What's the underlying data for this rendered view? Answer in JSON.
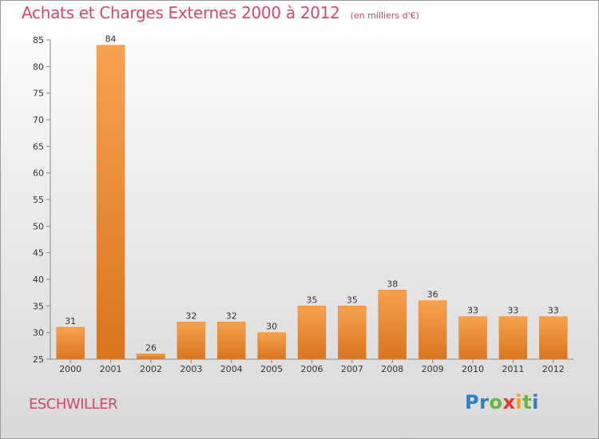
{
  "header": {
    "title": "Achats et Charges Externes 2000 à 2012",
    "subtitle": "(en milliers d'€)"
  },
  "footer": {
    "city": "ESCHWILLER",
    "logo_letters": [
      {
        "ch": "P",
        "color": "#2f7fc1"
      },
      {
        "ch": "r",
        "color": "#2f7fc1"
      },
      {
        "ch": "o",
        "color": "#6cb33e"
      },
      {
        "ch": "x",
        "color": "#e8352c"
      },
      {
        "ch": "i",
        "color": "#f0a020"
      },
      {
        "ch": "t",
        "color": "#6cb33e"
      },
      {
        "ch": "i",
        "color": "#2f7fc1"
      }
    ]
  },
  "chart_data": {
    "type": "bar",
    "categories": [
      "2000",
      "2001",
      "2002",
      "2003",
      "2004",
      "2005",
      "2006",
      "2007",
      "2008",
      "2009",
      "2010",
      "2011",
      "2012"
    ],
    "values": [
      31,
      84,
      26,
      32,
      32,
      30,
      35,
      35,
      38,
      36,
      33,
      33,
      33
    ],
    "ylim": [
      25,
      85
    ],
    "yticks": [
      25,
      30,
      35,
      40,
      45,
      50,
      55,
      60,
      65,
      70,
      75,
      80,
      85
    ],
    "bar_color_light": "#f7a24f",
    "bar_color_dark": "#d9741c",
    "grid": false
  }
}
